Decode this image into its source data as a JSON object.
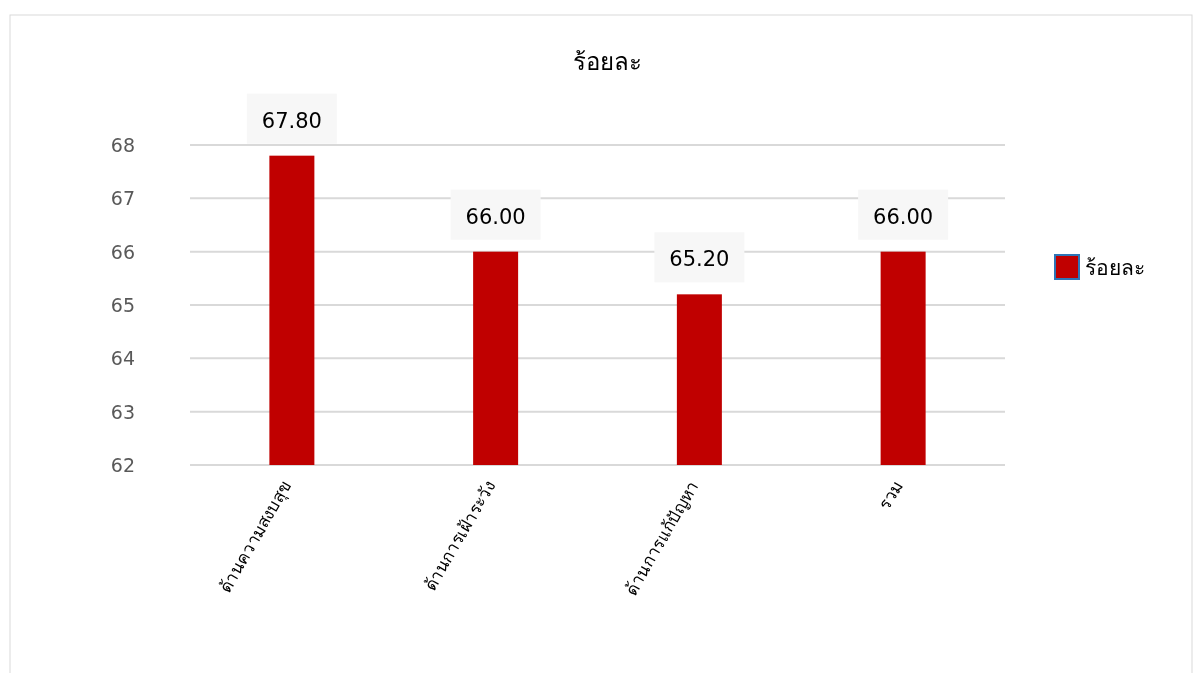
{
  "chart_data": {
    "type": "bar",
    "title": "ร้อยละ",
    "categories": [
      "ด้านความสงบสุข",
      "ด้านการเฝ้าระวัง",
      "ด้านการแก้ปัญหา",
      "รวม"
    ],
    "series": [
      {
        "name": "ร้อยละ",
        "color": "#c00000",
        "values": [
          67.8,
          66,
          65.2,
          66
        ],
        "value_labels": [
          "67.80",
          "66.00",
          "65.20",
          "66.00"
        ]
      }
    ],
    "ylim": [
      62,
      68
    ],
    "yticks": [
      62,
      63,
      64,
      65,
      66,
      67,
      68
    ],
    "grid": "y",
    "legend": "right"
  }
}
